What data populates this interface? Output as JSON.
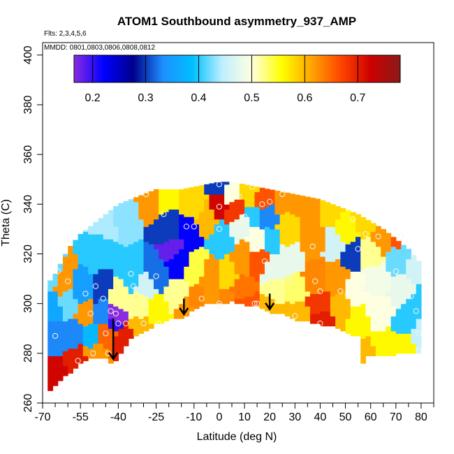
{
  "chart_data": {
    "type": "heatmap",
    "title": "ATOM1 Southbound asymmetry_937_AMP",
    "annotations": [
      "Flts: 2,3,4,5,6",
      "MMDD: 0801,0803,0806,0808,0812"
    ],
    "xlabel": "Latitude (deg N)",
    "ylabel": "Theta (C)",
    "xlim": [
      -70,
      85
    ],
    "ylim": [
      260,
      405
    ],
    "x_ticks": [
      -70,
      -55,
      -40,
      -25,
      -10,
      0,
      10,
      20,
      30,
      40,
      50,
      60,
      70,
      80
    ],
    "x_tick_labels": [
      "-70",
      "-55",
      "-40",
      "-25",
      "-10",
      "0",
      "10",
      "20",
      "30",
      "40",
      "50",
      "60",
      "70",
      "80"
    ],
    "x_minor_ticks": [
      -65,
      -60,
      -50,
      -45,
      -35,
      -30,
      -20,
      -15,
      -5,
      5,
      15,
      25,
      35,
      45,
      55,
      65,
      75,
      85
    ],
    "y_ticks": [
      260,
      280,
      300,
      320,
      340,
      360,
      380,
      400
    ],
    "y_tick_labels": [
      "260",
      "280",
      "300",
      "320",
      "340",
      "360",
      "380",
      "400"
    ],
    "colorbar": {
      "vmin": 0.165,
      "vmax": 0.78,
      "ticks": [
        0.2,
        0.3,
        0.4,
        0.5,
        0.6,
        0.7
      ],
      "tick_labels": [
        "0.2",
        "0.3",
        "0.4",
        "0.5",
        "0.6",
        "0.7"
      ],
      "colors": [
        "#8a2be2",
        "#0000ff",
        "#00008b",
        "#1e90ff",
        "#00bfff",
        "#bfefff",
        "#ffffe0",
        "#ffff00",
        "#ffa500",
        "#ff4500",
        "#cd0000",
        "#8b1a1a"
      ]
    },
    "domain_top": [
      [
        -68,
        308
      ],
      [
        -65,
        312
      ],
      [
        -60,
        322
      ],
      [
        -55,
        328
      ],
      [
        -50,
        332
      ],
      [
        -45,
        336
      ],
      [
        -40,
        340
      ],
      [
        -35,
        342
      ],
      [
        -30,
        344
      ],
      [
        -25,
        346
      ],
      [
        -20,
        346
      ],
      [
        -15,
        346
      ],
      [
        -10,
        347
      ],
      [
        -5,
        348
      ],
      [
        0,
        349
      ],
      [
        5,
        349
      ],
      [
        10,
        348
      ],
      [
        15,
        347
      ],
      [
        20,
        346
      ],
      [
        25,
        345
      ],
      [
        30,
        344
      ],
      [
        35,
        343
      ],
      [
        40,
        342
      ],
      [
        45,
        340
      ],
      [
        50,
        338
      ],
      [
        55,
        336
      ],
      [
        60,
        333
      ],
      [
        65,
        330
      ],
      [
        70,
        326
      ],
      [
        75,
        322
      ],
      [
        80,
        316
      ]
    ],
    "domain_bottom": [
      [
        -68,
        265
      ],
      [
        -60,
        272
      ],
      [
        -55,
        276
      ],
      [
        -50,
        279
      ],
      [
        -45,
        278
      ],
      [
        -42,
        276
      ],
      [
        -38,
        282
      ],
      [
        -35,
        286
      ],
      [
        -30,
        289
      ],
      [
        -25,
        292
      ],
      [
        -20,
        294
      ],
      [
        -14,
        295
      ],
      [
        -10,
        298
      ],
      [
        -5,
        300
      ],
      [
        0,
        300
      ],
      [
        5,
        301
      ],
      [
        10,
        300
      ],
      [
        15,
        299
      ],
      [
        20,
        297
      ],
      [
        25,
        296
      ],
      [
        30,
        294
      ],
      [
        35,
        293
      ],
      [
        40,
        292
      ],
      [
        45,
        291
      ],
      [
        50,
        289
      ],
      [
        55,
        287
      ],
      [
        56,
        276
      ],
      [
        58,
        276
      ],
      [
        58,
        279
      ],
      [
        65,
        279
      ],
      [
        70,
        280
      ],
      [
        75,
        280
      ],
      [
        80,
        280
      ]
    ],
    "anchors": [
      {
        "x": -66,
        "y": 312,
        "v": 0.42
      },
      {
        "x": -66,
        "y": 298,
        "v": 0.36
      },
      {
        "x": -66,
        "y": 287,
        "v": 0.33
      },
      {
        "x": -66,
        "y": 270,
        "v": 0.72
      },
      {
        "x": -62,
        "y": 309,
        "v": 0.62
      },
      {
        "x": -60,
        "y": 300,
        "v": 0.42
      },
      {
        "x": -58,
        "y": 288,
        "v": 0.33
      },
      {
        "x": -56,
        "y": 278,
        "v": 0.7
      },
      {
        "x": -55,
        "y": 306,
        "v": 0.35
      },
      {
        "x": -53,
        "y": 296,
        "v": 0.62
      },
      {
        "x": -51,
        "y": 286,
        "v": 0.38
      },
      {
        "x": -50,
        "y": 280,
        "v": 0.62
      },
      {
        "x": -48,
        "y": 320,
        "v": 0.4
      },
      {
        "x": -47,
        "y": 306,
        "v": 0.3
      },
      {
        "x": -46,
        "y": 297,
        "v": 0.33
      },
      {
        "x": -44,
        "y": 288,
        "v": 0.65
      },
      {
        "x": -42,
        "y": 292,
        "v": 0.2
      },
      {
        "x": -41,
        "y": 296,
        "v": 0.15
      },
      {
        "x": -40,
        "y": 302,
        "v": 0.52
      },
      {
        "x": -38,
        "y": 286,
        "v": 0.7
      },
      {
        "x": -45,
        "y": 334,
        "v": 0.44
      },
      {
        "x": -38,
        "y": 336,
        "v": 0.43
      },
      {
        "x": -34,
        "y": 312,
        "v": 0.4
      },
      {
        "x": -32,
        "y": 298,
        "v": 0.52
      },
      {
        "x": -31,
        "y": 291,
        "v": 0.6
      },
      {
        "x": -29,
        "y": 308,
        "v": 0.46
      },
      {
        "x": -26,
        "y": 312,
        "v": 0.32
      },
      {
        "x": -24,
        "y": 296,
        "v": 0.56
      },
      {
        "x": -27,
        "y": 343,
        "v": 0.62
      },
      {
        "x": -22,
        "y": 345,
        "v": 0.56
      },
      {
        "x": -20,
        "y": 330,
        "v": 0.3
      },
      {
        "x": -18,
        "y": 322,
        "v": 0.18
      },
      {
        "x": -16,
        "y": 318,
        "v": 0.22
      },
      {
        "x": -17,
        "y": 302,
        "v": 0.52
      },
      {
        "x": -14,
        "y": 297,
        "v": 0.62
      },
      {
        "x": -12,
        "y": 328,
        "v": 0.22
      },
      {
        "x": -10,
        "y": 340,
        "v": 0.58
      },
      {
        "x": -9,
        "y": 315,
        "v": 0.54
      },
      {
        "x": -8,
        "y": 300,
        "v": 0.63
      },
      {
        "x": -5,
        "y": 334,
        "v": 0.6
      },
      {
        "x": -4,
        "y": 312,
        "v": 0.62
      },
      {
        "x": -3,
        "y": 301,
        "v": 0.62
      },
      {
        "x": 0,
        "y": 347,
        "v": 0.3
      },
      {
        "x": 0,
        "y": 340,
        "v": 0.72
      },
      {
        "x": 1,
        "y": 326,
        "v": 0.4
      },
      {
        "x": 2,
        "y": 312,
        "v": 0.58
      },
      {
        "x": 2,
        "y": 300,
        "v": 0.63
      },
      {
        "x": 5,
        "y": 344,
        "v": 0.5
      },
      {
        "x": 6,
        "y": 338,
        "v": 0.68
      },
      {
        "x": 8,
        "y": 332,
        "v": 0.48
      },
      {
        "x": 9,
        "y": 318,
        "v": 0.62
      },
      {
        "x": 10,
        "y": 305,
        "v": 0.64
      },
      {
        "x": 11,
        "y": 300,
        "v": 0.66
      },
      {
        "x": 12,
        "y": 344,
        "v": 0.58
      },
      {
        "x": 14,
        "y": 336,
        "v": 0.4
      },
      {
        "x": 16,
        "y": 326,
        "v": 0.5
      },
      {
        "x": 16,
        "y": 318,
        "v": 0.66
      },
      {
        "x": 17,
        "y": 342,
        "v": 0.66
      },
      {
        "x": 19,
        "y": 335,
        "v": 0.33
      },
      {
        "x": 20,
        "y": 326,
        "v": 0.4
      },
      {
        "x": 21,
        "y": 314,
        "v": 0.48
      },
      {
        "x": 22,
        "y": 305,
        "v": 0.52
      },
      {
        "x": 20,
        "y": 298,
        "v": 0.6
      },
      {
        "x": 25,
        "y": 342,
        "v": 0.62
      },
      {
        "x": 27,
        "y": 330,
        "v": 0.58
      },
      {
        "x": 28,
        "y": 318,
        "v": 0.48
      },
      {
        "x": 30,
        "y": 306,
        "v": 0.53
      },
      {
        "x": 30,
        "y": 296,
        "v": 0.6
      },
      {
        "x": 35,
        "y": 340,
        "v": 0.62
      },
      {
        "x": 37,
        "y": 326,
        "v": 0.62
      },
      {
        "x": 38,
        "y": 310,
        "v": 0.63
      },
      {
        "x": 40,
        "y": 300,
        "v": 0.68
      },
      {
        "x": 41,
        "y": 293,
        "v": 0.7
      },
      {
        "x": 44,
        "y": 338,
        "v": 0.58
      },
      {
        "x": 46,
        "y": 324,
        "v": 0.46
      },
      {
        "x": 47,
        "y": 310,
        "v": 0.62
      },
      {
        "x": 48,
        "y": 298,
        "v": 0.6
      },
      {
        "x": 50,
        "y": 330,
        "v": 0.56
      },
      {
        "x": 52,
        "y": 320,
        "v": 0.3
      },
      {
        "x": 54,
        "y": 306,
        "v": 0.5
      },
      {
        "x": 55,
        "y": 292,
        "v": 0.56
      },
      {
        "x": 57,
        "y": 281,
        "v": 0.6
      },
      {
        "x": 58,
        "y": 334,
        "v": 0.58
      },
      {
        "x": 60,
        "y": 320,
        "v": 0.52
      },
      {
        "x": 62,
        "y": 310,
        "v": 0.49
      },
      {
        "x": 63,
        "y": 296,
        "v": 0.5
      },
      {
        "x": 65,
        "y": 283,
        "v": 0.56
      },
      {
        "x": 65,
        "y": 326,
        "v": 0.62
      },
      {
        "x": 70,
        "y": 327,
        "v": 0.66
      },
      {
        "x": 71,
        "y": 318,
        "v": 0.42
      },
      {
        "x": 73,
        "y": 306,
        "v": 0.48
      },
      {
        "x": 75,
        "y": 293,
        "v": 0.4
      },
      {
        "x": 74,
        "y": 282,
        "v": 0.56
      },
      {
        "x": 78,
        "y": 314,
        "v": 0.46
      },
      {
        "x": 79,
        "y": 300,
        "v": 0.4
      },
      {
        "x": 79,
        "y": 288,
        "v": 0.45
      }
    ],
    "observation_points": [
      {
        "x": -65,
        "y": 287
      },
      {
        "x": -64,
        "y": 313
      },
      {
        "x": -60,
        "y": 309
      },
      {
        "x": -56,
        "y": 277
      },
      {
        "x": -53,
        "y": 304
      },
      {
        "x": -51,
        "y": 296
      },
      {
        "x": -50,
        "y": 280
      },
      {
        "x": -49,
        "y": 307
      },
      {
        "x": -46,
        "y": 302
      },
      {
        "x": -45,
        "y": 288
      },
      {
        "x": -44,
        "y": 280
      },
      {
        "x": -43,
        "y": 297
      },
      {
        "x": -41,
        "y": 296
      },
      {
        "x": -40,
        "y": 292
      },
      {
        "x": -37,
        "y": 292
      },
      {
        "x": -35,
        "y": 312
      },
      {
        "x": -34,
        "y": 307
      },
      {
        "x": -30,
        "y": 292
      },
      {
        "x": -29,
        "y": 344
      },
      {
        "x": -25,
        "y": 311
      },
      {
        "x": -24,
        "y": 292
      },
      {
        "x": -22,
        "y": 336
      },
      {
        "x": -13,
        "y": 331
      },
      {
        "x": -10,
        "y": 331
      },
      {
        "x": -7,
        "y": 302
      },
      {
        "x": 0,
        "y": 348
      },
      {
        "x": 0,
        "y": 339
      },
      {
        "x": 0,
        "y": 330
      },
      {
        "x": 0,
        "y": 300
      },
      {
        "x": 0,
        "y": 299
      },
      {
        "x": 8,
        "y": 343
      },
      {
        "x": 10,
        "y": 335
      },
      {
        "x": 13,
        "y": 347
      },
      {
        "x": 14,
        "y": 300
      },
      {
        "x": 15,
        "y": 300
      },
      {
        "x": 17,
        "y": 340
      },
      {
        "x": 18,
        "y": 317
      },
      {
        "x": 20,
        "y": 341
      },
      {
        "x": 21,
        "y": 314
      },
      {
        "x": 25,
        "y": 344
      },
      {
        "x": 28,
        "y": 309
      },
      {
        "x": 30,
        "y": 295
      },
      {
        "x": 37,
        "y": 323
      },
      {
        "x": 38,
        "y": 309
      },
      {
        "x": 40,
        "y": 292
      },
      {
        "x": 40,
        "y": 305
      },
      {
        "x": 46,
        "y": 342
      },
      {
        "x": 48,
        "y": 305
      },
      {
        "x": 53,
        "y": 334
      },
      {
        "x": 55,
        "y": 322
      },
      {
        "x": 57,
        "y": 306
      },
      {
        "x": 58,
        "y": 328
      },
      {
        "x": 63,
        "y": 327
      },
      {
        "x": 70,
        "y": 313
      },
      {
        "x": 72,
        "y": 327
      },
      {
        "x": 76,
        "y": 303
      },
      {
        "x": 78,
        "y": 297
      },
      {
        "x": 79,
        "y": 288
      },
      {
        "x": 79,
        "y": 281
      }
    ],
    "arrows": [
      {
        "x": -42,
        "y_from": 294,
        "y_to": 278
      },
      {
        "x": -14,
        "y_from": 302,
        "y_to": 296
      },
      {
        "x": 20,
        "y_from": 304,
        "y_to": 298
      }
    ]
  }
}
